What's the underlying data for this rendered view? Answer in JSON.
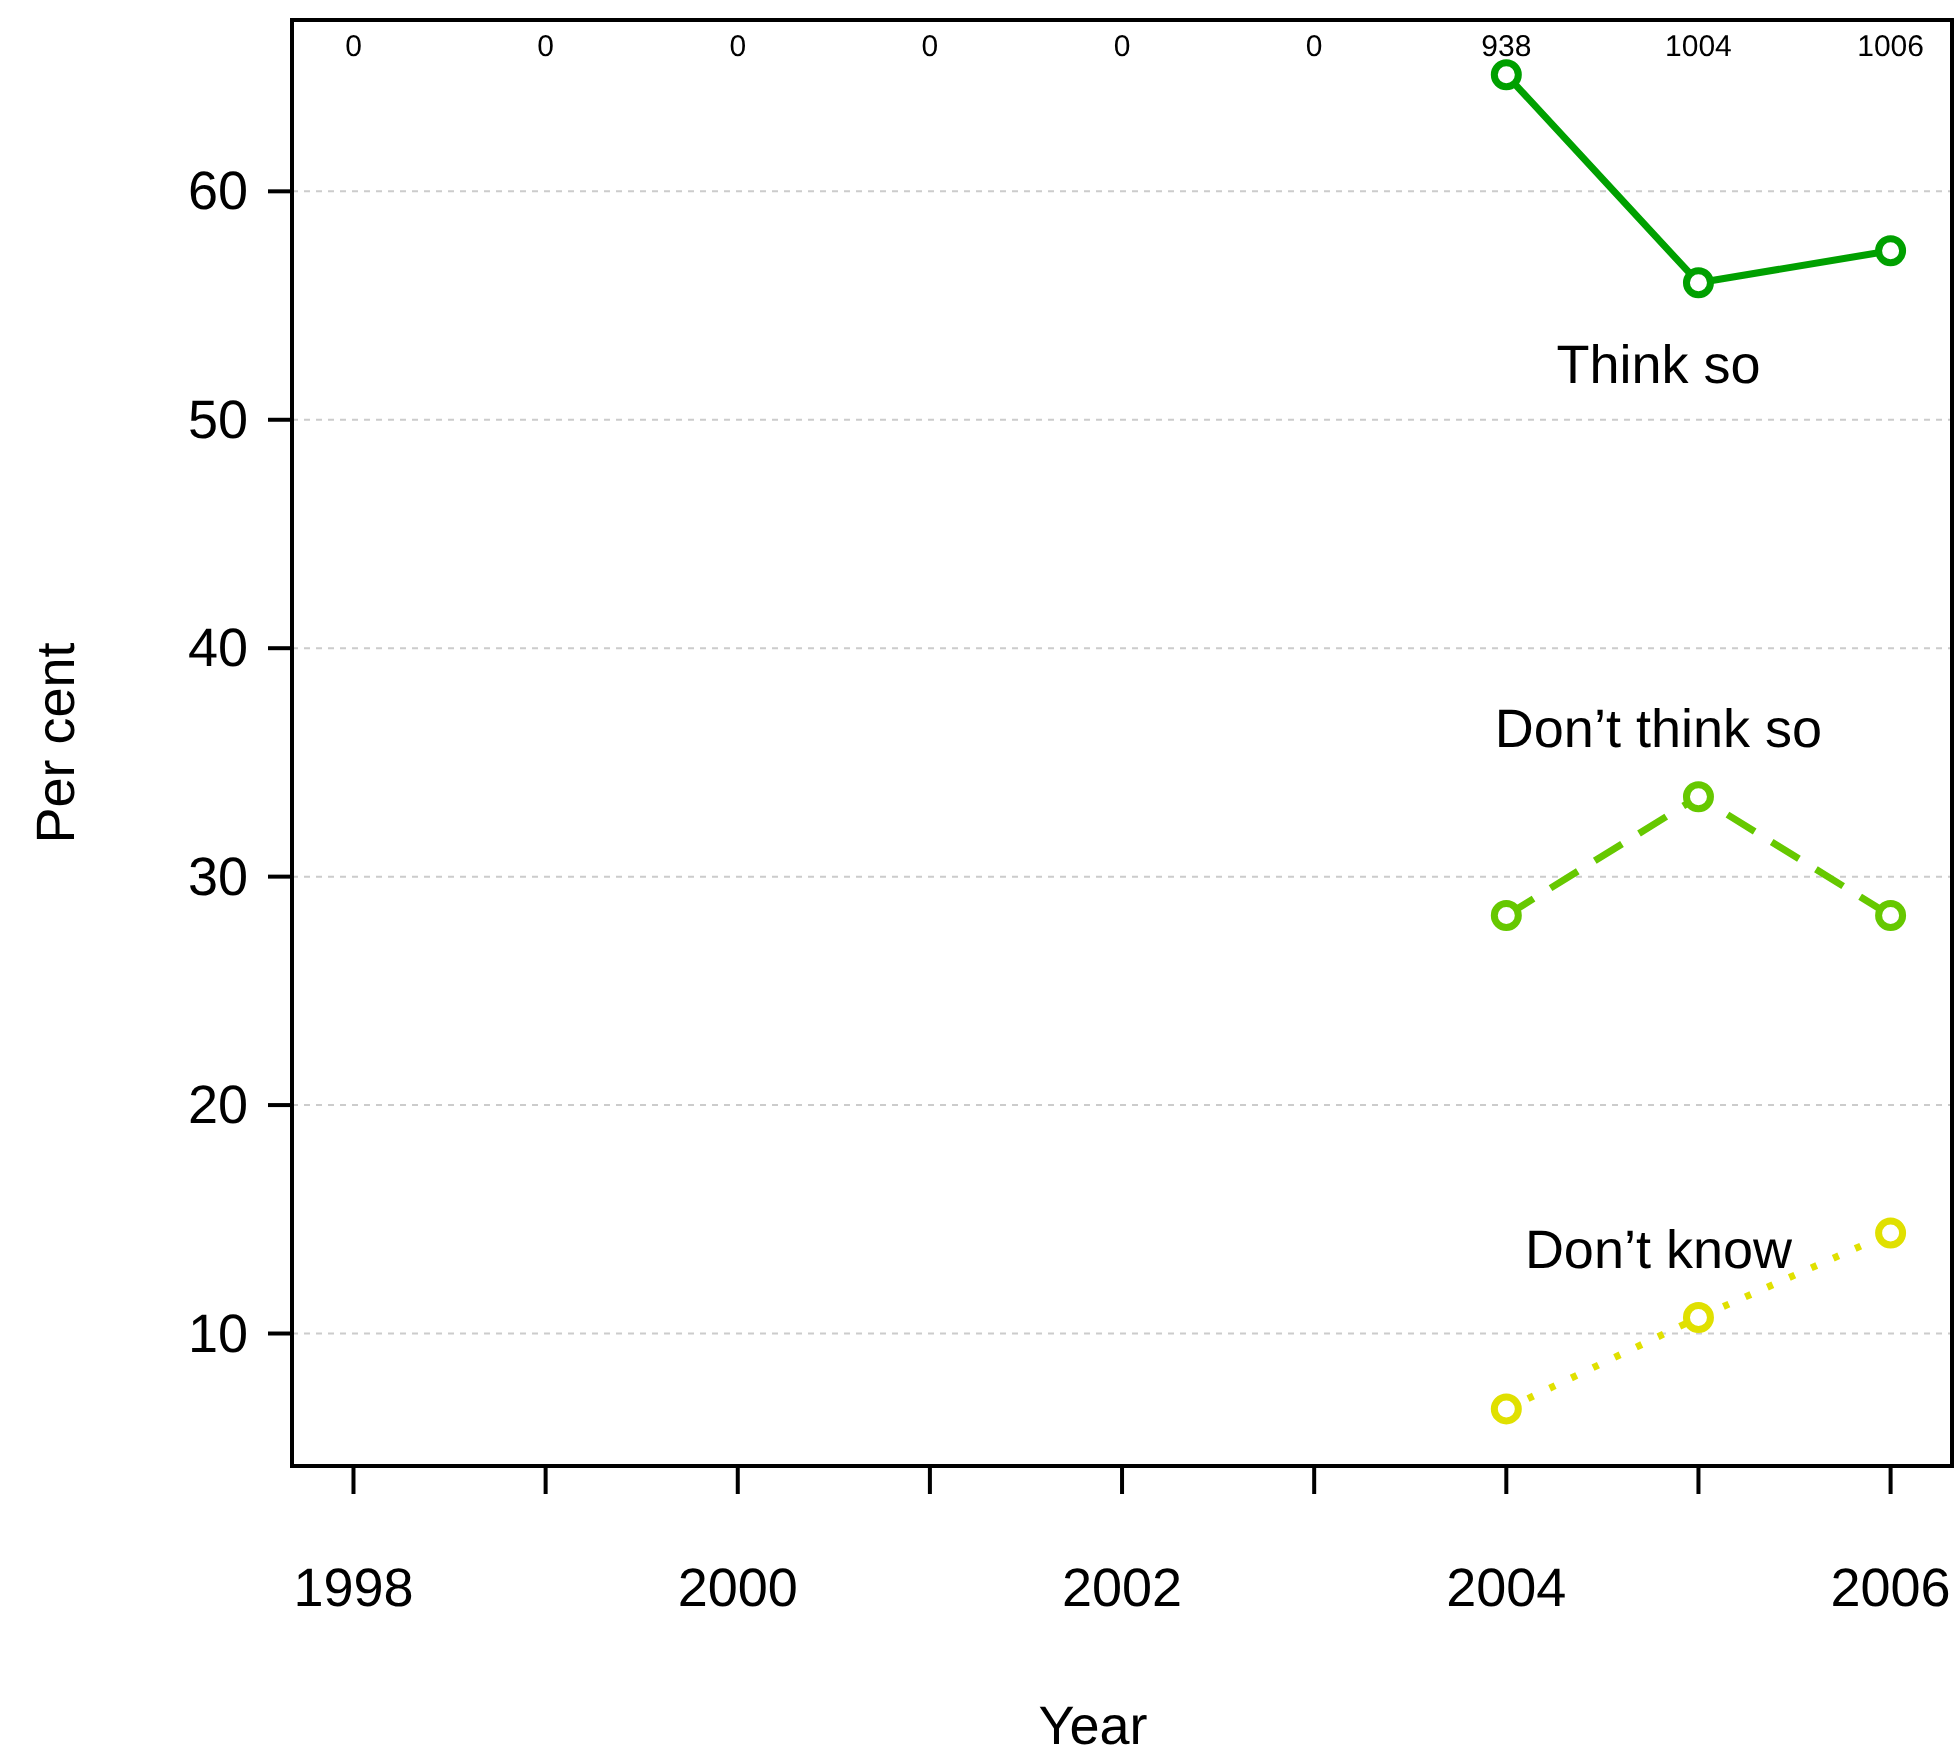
{
  "chart_data": {
    "type": "line",
    "xlabel": "Year",
    "ylabel": "Per cent",
    "x": [
      2004,
      2005,
      2006
    ],
    "series": [
      {
        "name": "Think so",
        "color": "#00a000",
        "values": [
          65.1,
          56.0,
          57.4
        ],
        "line_style": "solid"
      },
      {
        "name": "Don’t think so",
        "color": "#66c800",
        "values": [
          28.3,
          33.5,
          28.3
        ],
        "line_style": "dashed"
      },
      {
        "name": "Don’t know",
        "color": "#e0e000",
        "values": [
          6.7,
          10.7,
          14.4
        ],
        "line_style": "dotted"
      }
    ],
    "marker": "circle",
    "grid": "y",
    "xlim": [
      1997.68,
      2006.33
    ],
    "ylim": [
      4.2,
      67.5
    ],
    "xticks": [
      1998,
      {
        "value": 1999,
        "label": null
      },
      2000,
      {
        "value": 2001,
        "label": null
      },
      2002,
      {
        "value": 2003,
        "label": null
      },
      2004,
      {
        "value": 2005,
        "label": null
      },
      2006
    ],
    "yticks": [
      10,
      20,
      30,
      40,
      50,
      60
    ],
    "annotations": [
      "0",
      "0",
      "0",
      "0",
      "0",
      "0",
      "938",
      "1004",
      "1006"
    ]
  }
}
